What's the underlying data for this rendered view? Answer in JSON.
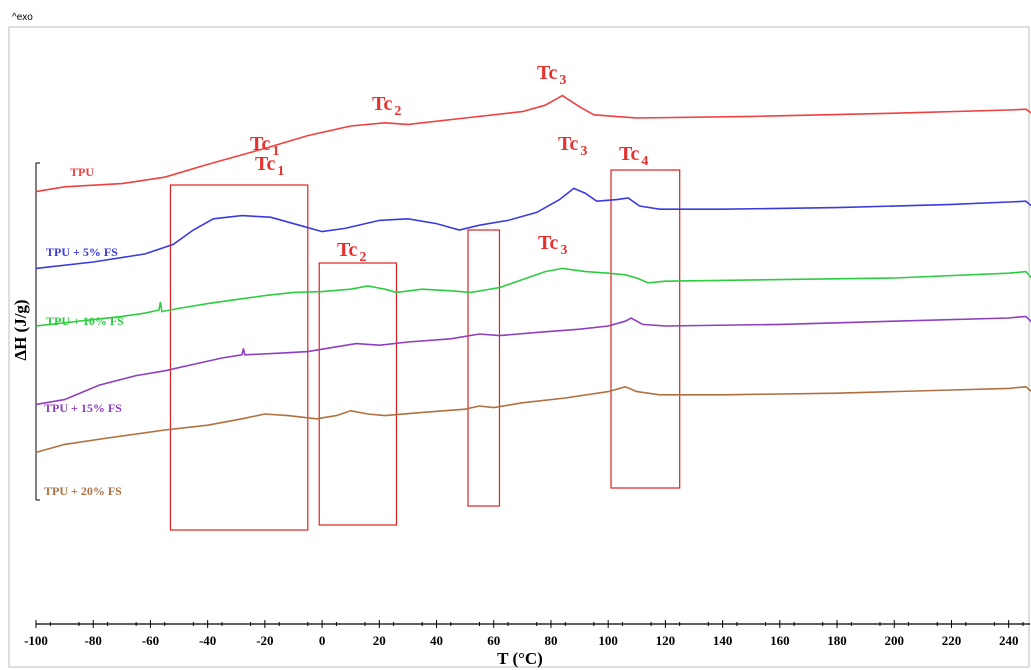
{
  "corner_label": "^exo",
  "chart_data": {
    "type": "line",
    "xlabel": "T (°C)",
    "ylabel": "ΔH (J/g)",
    "xlim": [
      -100,
      250
    ],
    "x_ticks": [
      -100,
      -80,
      -60,
      -40,
      -20,
      0,
      20,
      40,
      60,
      80,
      100,
      120,
      140,
      160,
      180,
      200,
      220,
      240
    ],
    "x_tick_labels": [
      "-100",
      "-80",
      "-60",
      "-40",
      "-20",
      "0",
      "20",
      "40",
      "60",
      "80",
      "100",
      "120",
      "140",
      "160",
      "180",
      "200",
      "220",
      "240"
    ],
    "series": [
      {
        "name": "TPU",
        "color": "#f04040",
        "points": [
          [
            -100,
            -2
          ],
          [
            -90,
            4
          ],
          [
            -70,
            8
          ],
          [
            -55,
            16
          ],
          [
            -40,
            32
          ],
          [
            -20,
            52
          ],
          [
            -5,
            68
          ],
          [
            10,
            80
          ],
          [
            22,
            84
          ],
          [
            30,
            82
          ],
          [
            50,
            90
          ],
          [
            70,
            98
          ],
          [
            78,
            106
          ],
          [
            84,
            118
          ],
          [
            90,
            104
          ],
          [
            95,
            94
          ],
          [
            110,
            90
          ],
          [
            150,
            92
          ],
          [
            200,
            96
          ],
          [
            240,
            100
          ],
          [
            246,
            101
          ],
          [
            248,
            96
          ],
          [
            250,
            -5
          ]
        ]
      },
      {
        "name": "TPU + 5% FS",
        "color": "#3a3ae0",
        "points": [
          [
            -100,
            -98
          ],
          [
            -80,
            -90
          ],
          [
            -62,
            -80
          ],
          [
            -52,
            -68
          ],
          [
            -45,
            -50
          ],
          [
            -38,
            -36
          ],
          [
            -28,
            -32
          ],
          [
            -18,
            -34
          ],
          [
            -8,
            -44
          ],
          [
            0,
            -52
          ],
          [
            8,
            -48
          ],
          [
            20,
            -38
          ],
          [
            30,
            -36
          ],
          [
            40,
            -42
          ],
          [
            48,
            -50
          ],
          [
            55,
            -44
          ],
          [
            65,
            -38
          ],
          [
            75,
            -28
          ],
          [
            83,
            -12
          ],
          [
            88,
            2
          ],
          [
            92,
            -4
          ],
          [
            96,
            -14
          ],
          [
            103,
            -12
          ],
          [
            107,
            -10
          ],
          [
            111,
            -20
          ],
          [
            118,
            -24
          ],
          [
            140,
            -24
          ],
          [
            180,
            -22
          ],
          [
            220,
            -18
          ],
          [
            240,
            -15
          ],
          [
            246,
            -14
          ],
          [
            248,
            -20
          ],
          [
            250,
            -110
          ]
        ]
      },
      {
        "name": "TPU + 10% FS",
        "color": "#2ecc40",
        "points": [
          [
            -100,
            -170
          ],
          [
            -80,
            -162
          ],
          [
            -70,
            -158
          ],
          [
            -62,
            -154
          ],
          [
            -57,
            -150
          ],
          [
            -56.5,
            -140
          ],
          [
            -56,
            -152
          ],
          [
            -50,
            -148
          ],
          [
            -40,
            -142
          ],
          [
            -30,
            -137
          ],
          [
            -20,
            -132
          ],
          [
            -10,
            -128
          ],
          [
            0,
            -127
          ],
          [
            10,
            -124
          ],
          [
            16,
            -120
          ],
          [
            22,
            -124
          ],
          [
            26,
            -128
          ],
          [
            35,
            -124
          ],
          [
            45,
            -126
          ],
          [
            52,
            -128
          ],
          [
            57,
            -125
          ],
          [
            62,
            -122
          ],
          [
            70,
            -112
          ],
          [
            78,
            -102
          ],
          [
            84,
            -98
          ],
          [
            92,
            -102
          ],
          [
            100,
            -104
          ],
          [
            106,
            -106
          ],
          [
            110,
            -110
          ],
          [
            114,
            -116
          ],
          [
            120,
            -114
          ],
          [
            160,
            -112
          ],
          [
            200,
            -110
          ],
          [
            240,
            -104
          ],
          [
            246,
            -102
          ],
          [
            248,
            -110
          ],
          [
            250,
            -215
          ]
        ]
      },
      {
        "name": "TPU + 15% FS",
        "color": "#8e3fbf",
        "points": [
          [
            -100,
            -268
          ],
          [
            -90,
            -262
          ],
          [
            -78,
            -244
          ],
          [
            -65,
            -232
          ],
          [
            -55,
            -226
          ],
          [
            -45,
            -218
          ],
          [
            -35,
            -210
          ],
          [
            -28,
            -206
          ],
          [
            -27.5,
            -198
          ],
          [
            -27,
            -206
          ],
          [
            -15,
            -204
          ],
          [
            -5,
            -202
          ],
          [
            5,
            -196
          ],
          [
            12,
            -192
          ],
          [
            20,
            -194
          ],
          [
            30,
            -190
          ],
          [
            45,
            -186
          ],
          [
            55,
            -180
          ],
          [
            62,
            -182
          ],
          [
            75,
            -178
          ],
          [
            90,
            -174
          ],
          [
            100,
            -170
          ],
          [
            106,
            -164
          ],
          [
            108,
            -160
          ],
          [
            112,
            -168
          ],
          [
            120,
            -170
          ],
          [
            160,
            -168
          ],
          [
            200,
            -164
          ],
          [
            240,
            -160
          ],
          [
            246,
            -158
          ],
          [
            248,
            -165
          ],
          [
            250,
            -255
          ]
        ]
      },
      {
        "name": "TPU + 20% FS",
        "color": "#b07040",
        "points": [
          [
            -100,
            -328
          ],
          [
            -90,
            -318
          ],
          [
            -75,
            -310
          ],
          [
            -55,
            -300
          ],
          [
            -40,
            -294
          ],
          [
            -28,
            -286
          ],
          [
            -20,
            -280
          ],
          [
            -12,
            -282
          ],
          [
            -2,
            -286
          ],
          [
            5,
            -282
          ],
          [
            10,
            -276
          ],
          [
            16,
            -280
          ],
          [
            22,
            -282
          ],
          [
            35,
            -278
          ],
          [
            50,
            -274
          ],
          [
            55,
            -270
          ],
          [
            60,
            -272
          ],
          [
            70,
            -266
          ],
          [
            85,
            -260
          ],
          [
            100,
            -252
          ],
          [
            106,
            -246
          ],
          [
            110,
            -252
          ],
          [
            118,
            -256
          ],
          [
            140,
            -256
          ],
          [
            180,
            -254
          ],
          [
            220,
            -250
          ],
          [
            240,
            -248
          ],
          [
            246,
            -246
          ],
          [
            248,
            -252
          ],
          [
            250,
            -320
          ]
        ]
      }
    ],
    "curve_labels": [
      {
        "text": "TPU",
        "series": 0
      },
      {
        "text": "TPU + 5% FS",
        "series": 1
      },
      {
        "text": "TPU + 10% FS",
        "series": 2
      },
      {
        "text": "TPU + 15% FS",
        "series": 3
      },
      {
        "text": "TPU + 20% FS",
        "series": 4
      }
    ],
    "annotations": [
      {
        "main": "Tc",
        "sub": "1"
      },
      {
        "main": "Tc",
        "sub": "2"
      },
      {
        "main": "Tc",
        "sub": "3"
      },
      {
        "main": "Tc",
        "sub": "1"
      },
      {
        "main": "Tc",
        "sub": "3"
      },
      {
        "main": "Tc",
        "sub": "4"
      },
      {
        "main": "Tc",
        "sub": "2"
      },
      {
        "main": "Tc",
        "sub": "3"
      }
    ],
    "highlight_boxes": [
      {
        "x": [
          -53,
          -5
        ]
      },
      {
        "x": [
          -1,
          26
        ]
      },
      {
        "x": [
          51,
          62
        ]
      },
      {
        "x": [
          101,
          125
        ]
      }
    ]
  }
}
